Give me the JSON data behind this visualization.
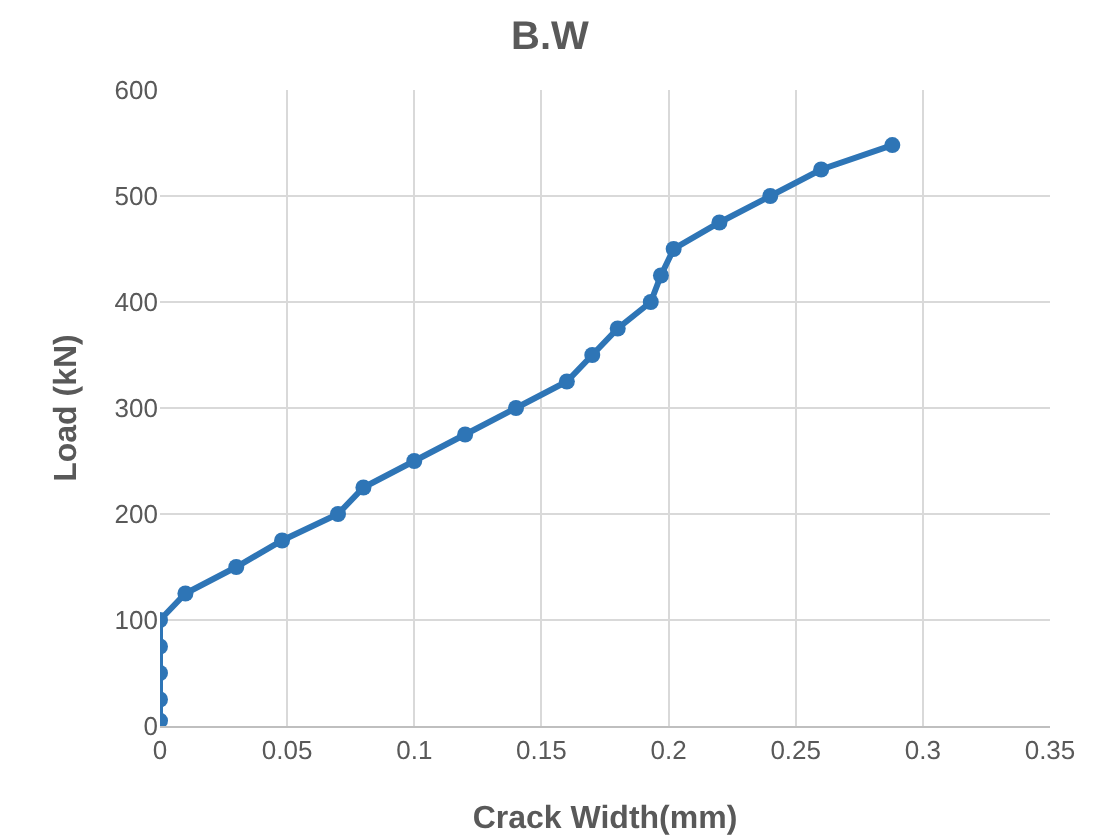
{
  "chart_data": {
    "type": "line",
    "title": "B.W",
    "xlabel": "Crack Width(mm)",
    "ylabel": "Load (kN)",
    "x": [
      0,
      0,
      0,
      0,
      0,
      0.01,
      0.03,
      0.048,
      0.07,
      0.08,
      0.1,
      0.12,
      0.14,
      0.16,
      0.17,
      0.18,
      0.193,
      0.197,
      0.202,
      0.22,
      0.24,
      0.26,
      0.288
    ],
    "series": [
      {
        "color": "#2e75b6",
        "values": [
          5,
          25,
          50,
          75,
          100,
          125,
          150,
          175,
          200,
          225,
          250,
          275,
          300,
          325,
          350,
          375,
          400,
          425,
          450,
          475,
          500,
          525,
          548
        ]
      }
    ],
    "xlim": [
      0,
      0.35
    ],
    "xticks": [
      0,
      0.05,
      0.1,
      0.15,
      0.2,
      0.25,
      0.3,
      0.35
    ],
    "ylim": [
      0,
      600
    ],
    "yticks": [
      0,
      100,
      200,
      300,
      400,
      500,
      600
    ],
    "grid": true,
    "marker": "circle",
    "line_style": "solid"
  }
}
